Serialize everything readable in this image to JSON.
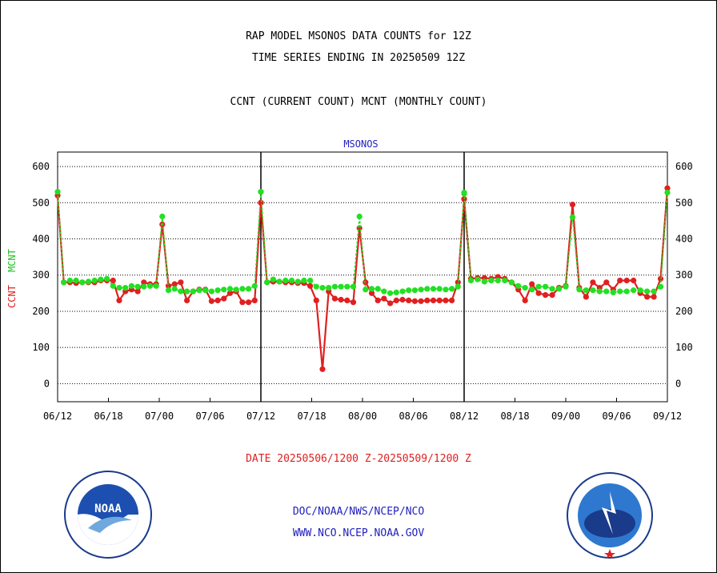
{
  "title_line1": "RAP MODEL MSONOS DATA COUNTS for 12Z",
  "title_line2": "TIME SERIES ENDING IN 20250509 12Z",
  "subtitle": "CCNT (CURRENT COUNT) MCNT (MONTHLY COUNT)",
  "date_range": "DATE 20250506/1200 Z-20250509/1200 Z",
  "footer_org": "DOC/NOAA/NWS/NCEP/NCO",
  "footer_url": "WWW.NCO.NCEP.NOAA.GOV",
  "colors": {
    "ccnt": "#e02020",
    "mcnt": "#22e022",
    "text_blue": "#2020c0",
    "date_red": "#e02020"
  },
  "logos": {
    "left": "noaa-logo",
    "right": "national-weather-service-logo"
  },
  "chart_data": {
    "type": "line",
    "title": "MSONOS",
    "ylabel_series": [
      "CCNT",
      "MCNT"
    ],
    "ylim": [
      -50,
      640
    ],
    "yticks": [
      0,
      100,
      200,
      300,
      400,
      500,
      600
    ],
    "xtick_labels": [
      "06/12",
      "06/18",
      "07/00",
      "07/06",
      "07/12",
      "07/18",
      "08/00",
      "08/06",
      "08/12",
      "08/18",
      "09/00",
      "09/06",
      "09/12"
    ],
    "grid": "horizontal dotted",
    "panels": [
      {
        "series": [
          {
            "name": "CCNT",
            "values": [
              520,
              280,
              280,
              278,
              280,
              280,
              280,
              285,
              285,
              285,
              230,
              255,
              260,
              255,
              280,
              275,
              275,
              440,
              270,
              275,
              280,
              230,
              255,
              260,
              260,
              228,
              230,
              235,
              250,
              255,
              225,
              225,
              230,
              500
            ]
          },
          {
            "name": "MCNT",
            "values": [
              530,
              280,
              285,
              285,
              280,
              282,
              285,
              288,
              290,
              270,
              265,
              265,
              270,
              268,
              268,
              270,
              270,
              462,
              258,
              262,
              255,
              255,
              255,
              258,
              258,
              255,
              258,
              260,
              262,
              260,
              262,
              262,
              270,
              530
            ]
          }
        ]
      },
      {
        "series": [
          {
            "name": "CCNT",
            "values": [
              500,
              280,
              282,
              282,
              280,
              280,
              278,
              278,
              270,
              230,
              40,
              255,
              235,
              232,
              230,
              225,
              430,
              280,
              250,
              230,
              235,
              222,
              230,
              232,
              230,
              228,
              228,
              230,
              230,
              230,
              230,
              230,
              280,
              510
            ]
          },
          {
            "name": "MCNT",
            "values": [
              530,
              280,
              288,
              282,
              285,
              285,
              282,
              285,
              285,
              268,
              265,
              265,
              268,
              268,
              268,
              268,
              462,
              260,
              262,
              262,
              255,
              250,
              252,
              255,
              258,
              258,
              260,
              262,
              262,
              262,
              260,
              262,
              268,
              525
            ]
          }
        ]
      },
      {
        "series": [
          {
            "name": "CCNT",
            "values": [
              510,
              290,
              292,
              292,
              290,
              295,
              290,
              280,
              260,
              230,
              275,
              250,
              245,
              245,
              265,
              270,
              495,
              265,
              240,
              280,
              265,
              280,
              260,
              285,
              285,
              285,
              250,
              240,
              240,
              290,
              540
            ]
          },
          {
            "name": "MCNT",
            "values": [
              528,
              285,
              288,
              282,
              285,
              285,
              285,
              280,
              270,
              265,
              260,
              268,
              268,
              262,
              262,
              268,
              460,
              260,
              258,
              258,
              255,
              255,
              252,
              255,
              255,
              258,
              258,
              255,
              255,
              268,
              528
            ]
          }
        ]
      }
    ]
  }
}
